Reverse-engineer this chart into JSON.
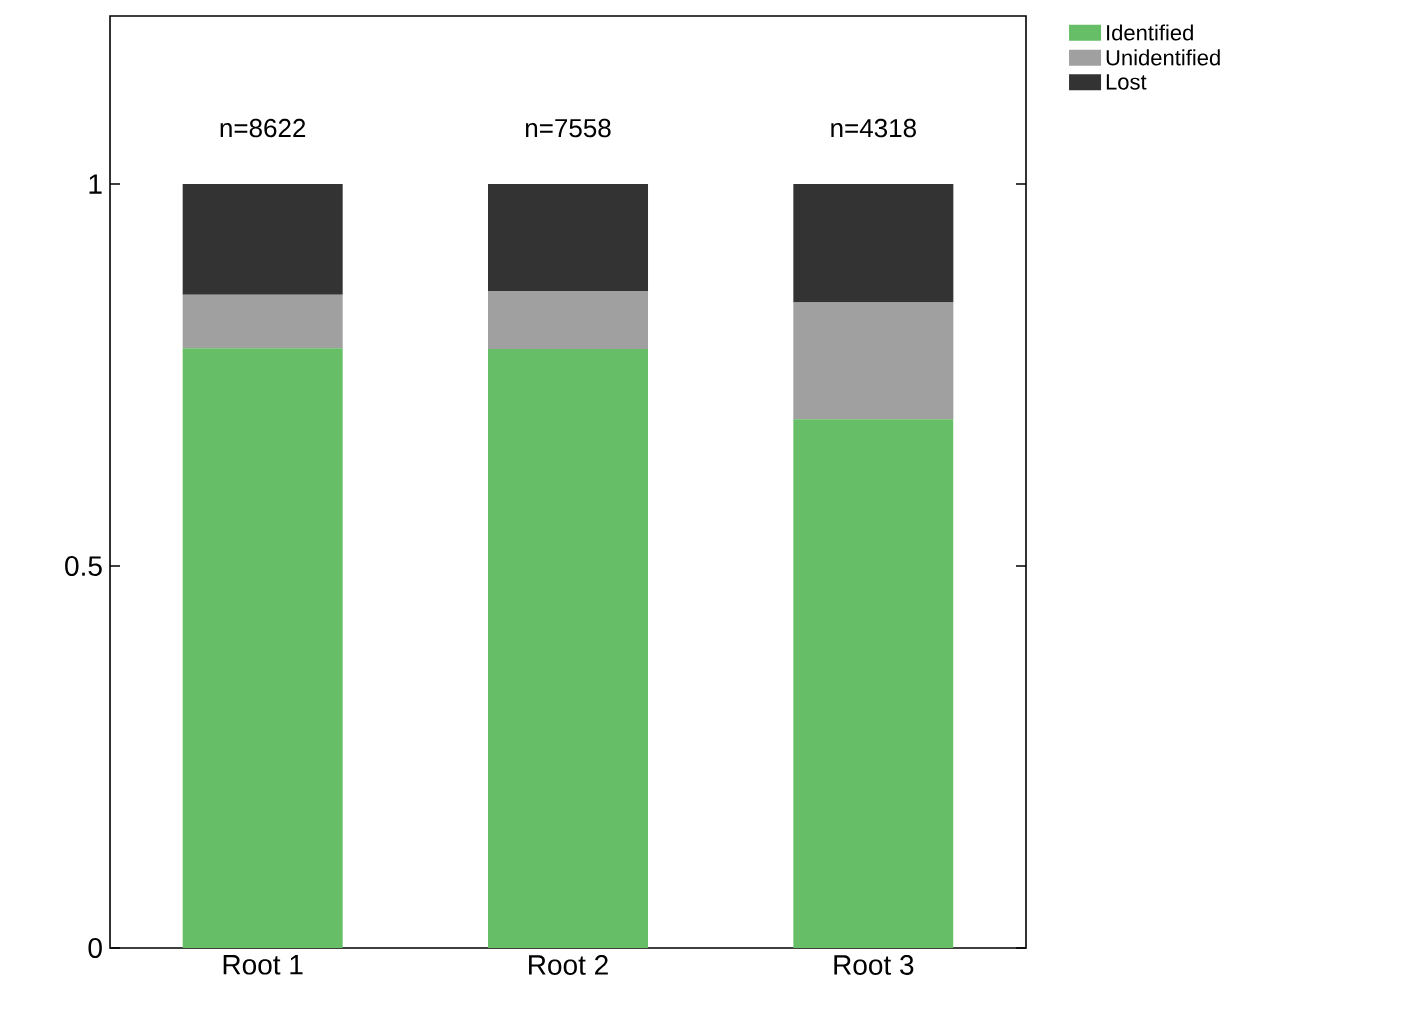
{
  "chart_data": {
    "type": "bar",
    "stacked": true,
    "categories": [
      "Root 1",
      "Root 2",
      "Root 3"
    ],
    "series": [
      {
        "name": "Identified",
        "color": "#66bf66",
        "values": [
          0.785,
          0.784,
          0.692
        ]
      },
      {
        "name": "Unidentified",
        "color": "#a0a0a0",
        "values": [
          0.07,
          0.076,
          0.153
        ]
      },
      {
        "name": "Lost",
        "color": "#333333",
        "values": [
          0.145,
          0.14,
          0.155
        ]
      }
    ],
    "ylim": [
      0,
      1.22
    ],
    "yticks": [
      0,
      0.5,
      1
    ],
    "legend": "top right",
    "annotations": [
      "n=8622",
      "n=7558",
      "n=4318"
    ]
  }
}
